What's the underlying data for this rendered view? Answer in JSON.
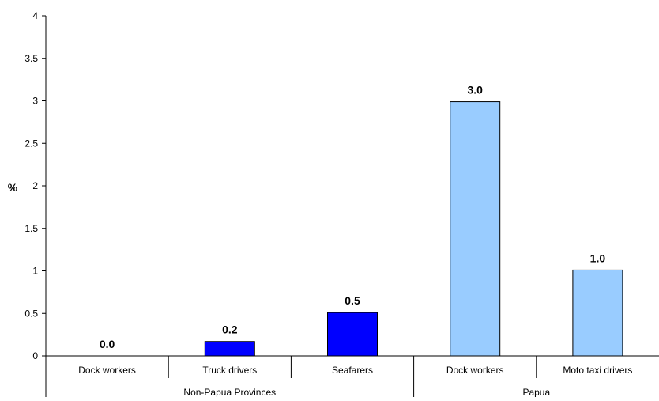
{
  "chart_data": {
    "type": "bar",
    "title": "",
    "xlabel": "",
    "ylabel": "%",
    "ylim": [
      0,
      4
    ],
    "yticks": [
      0,
      0.5,
      1,
      1.5,
      2,
      2.5,
      3,
      3.5,
      4
    ],
    "ytick_labels": [
      "0",
      "0.5",
      "1",
      "1.5",
      "2",
      "2.5",
      "3",
      "3.5",
      "4"
    ],
    "grid": false,
    "legend": "none",
    "categories": [
      "Dock workers",
      "Truck drivers",
      "Seafarers",
      "Dock workers",
      "Moto taxi drivers"
    ],
    "groups": [
      {
        "label": "Non-Papua Provinces",
        "count": 3,
        "color": "#0000FF"
      },
      {
        "label": "Papua",
        "count": 2,
        "color": "#99CCFF"
      }
    ],
    "values": [
      0.0,
      0.17,
      0.51,
      2.99,
      1.01
    ],
    "data_labels": [
      "0.0",
      "0.2",
      "0.5",
      "3.0",
      "1.0"
    ]
  }
}
